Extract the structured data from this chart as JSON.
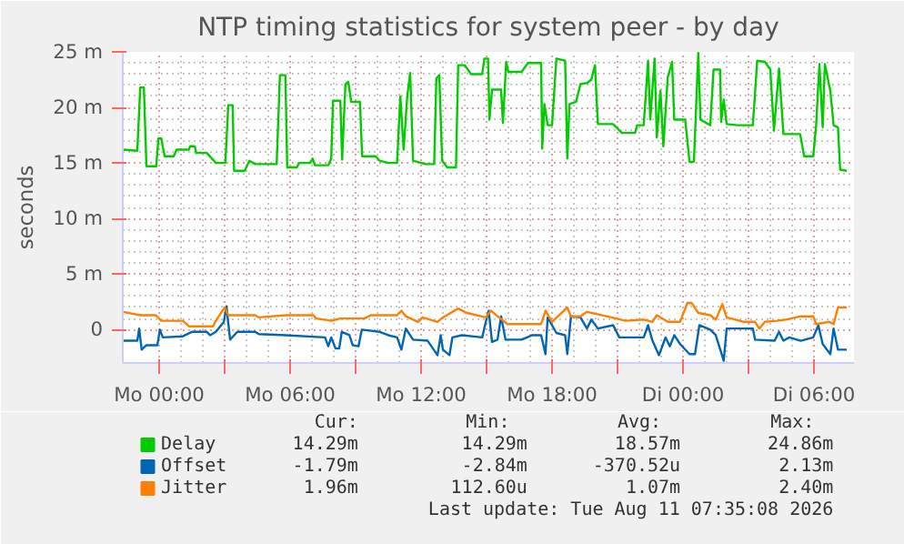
{
  "chart_data": {
    "type": "line",
    "title": "NTP timing statistics for system peer - by day",
    "ylabel": "seconds",
    "xlim": [
      "2026-08-09T22:20",
      "2026-08-11T07:50"
    ],
    "ylim": [
      -3,
      25
    ],
    "xticks": [
      {
        "value": "2026-08-10T00:00",
        "label": "Mo 00:00"
      },
      {
        "value": "2026-08-10T03:00",
        "label": null
      },
      {
        "value": "2026-08-10T06:00",
        "label": "Mo 06:00"
      },
      {
        "value": "2026-08-10T09:00",
        "label": null
      },
      {
        "value": "2026-08-10T12:00",
        "label": "Mo 12:00"
      },
      {
        "value": "2026-08-10T15:00",
        "label": null
      },
      {
        "value": "2026-08-10T18:00",
        "label": "Mo 18:00"
      },
      {
        "value": "2026-08-10T21:00",
        "label": null
      },
      {
        "value": "2026-08-11T00:00",
        "label": "Di 00:00"
      },
      {
        "value": "2026-08-11T03:00",
        "label": null
      },
      {
        "value": "2026-08-11T06:00",
        "label": "Di 06:00"
      }
    ],
    "yticks": [
      0,
      {
        "value": 5,
        "label": "5 m"
      },
      {
        "value": 10,
        "label": "10 m"
      },
      {
        "value": 15,
        "label": "15 m"
      },
      {
        "value": 20,
        "label": "20 m"
      },
      {
        "value": 25,
        "label": "25 m"
      }
    ],
    "grid": true,
    "legend": "bottom",
    "marker": "none",
    "line_style": "solid",
    "series": [
      {
        "name": "Delay",
        "color": "#00cc00",
        "x": [
          "2026-08-09T22:21",
          "2026-08-09T23:00",
          "2026-08-09T23:08",
          "2026-08-09T23:18",
          "2026-08-09T23:25",
          "2026-08-09T23:52",
          "2026-08-09T23:58",
          "2026-08-10T00:06",
          "2026-08-10T00:15",
          "2026-08-10T00:40",
          "2026-08-10T00:48",
          "2026-08-10T01:22",
          "2026-08-10T01:25",
          "2026-08-10T01:38",
          "2026-08-10T01:42",
          "2026-08-10T02:11",
          "2026-08-10T02:36",
          "2026-08-10T03:02",
          "2026-08-10T03:10",
          "2026-08-10T03:22",
          "2026-08-10T03:26",
          "2026-08-10T03:55",
          "2026-08-10T04:08",
          "2026-08-10T04:24",
          "2026-08-10T05:23",
          "2026-08-10T05:32",
          "2026-08-10T05:47",
          "2026-08-10T05:52",
          "2026-08-10T06:18",
          "2026-08-10T06:25",
          "2026-08-10T06:55",
          "2026-08-10T07:02",
          "2026-08-10T07:08",
          "2026-08-10T07:45",
          "2026-08-10T07:53",
          "2026-08-10T07:58",
          "2026-08-10T08:18",
          "2026-08-10T08:23",
          "2026-08-10T08:32",
          "2026-08-10T08:40",
          "2026-08-10T08:48",
          "2026-08-10T09:12",
          "2026-08-10T09:18",
          "2026-08-10T09:55",
          "2026-08-10T10:06",
          "2026-08-10T10:30",
          "2026-08-10T10:54",
          "2026-08-10T11:03",
          "2026-08-10T11:12",
          "2026-08-10T11:22",
          "2026-08-10T11:30",
          "2026-08-10T11:38",
          "2026-08-10T12:12",
          "2026-08-10T12:36",
          "2026-08-10T12:42",
          "2026-08-10T12:50",
          "2026-08-10T12:58",
          "2026-08-10T13:12",
          "2026-08-10T13:36",
          "2026-08-10T13:42",
          "2026-08-10T14:00",
          "2026-08-10T14:17",
          "2026-08-10T14:48",
          "2026-08-10T14:54",
          "2026-08-10T15:04",
          "2026-08-10T15:08",
          "2026-08-10T15:15",
          "2026-08-10T15:40",
          "2026-08-10T15:45",
          "2026-08-10T15:54",
          "2026-08-10T16:00",
          "2026-08-10T16:36",
          "2026-08-10T16:54",
          "2026-08-10T17:30",
          "2026-08-10T17:33",
          "2026-08-10T17:39",
          "2026-08-10T17:48",
          "2026-08-10T18:00",
          "2026-08-10T18:12",
          "2026-08-10T18:36",
          "2026-08-10T18:42",
          "2026-08-10T18:48",
          "2026-08-10T19:06",
          "2026-08-10T19:18",
          "2026-08-10T19:36",
          "2026-08-10T19:48",
          "2026-08-10T19:58",
          "2026-08-10T20:06",
          "2026-08-10T20:48",
          "2026-08-10T21:12",
          "2026-08-10T21:48",
          "2026-08-10T21:54",
          "2026-08-10T22:12",
          "2026-08-10T22:24",
          "2026-08-10T22:30",
          "2026-08-10T22:42",
          "2026-08-10T22:48",
          "2026-08-10T22:58",
          "2026-08-10T23:06",
          "2026-08-10T23:18",
          "2026-08-10T23:30",
          "2026-08-10T23:36",
          "2026-08-11T00:06",
          "2026-08-11T00:18",
          "2026-08-11T00:30",
          "2026-08-11T00:42",
          "2026-08-11T00:48",
          "2026-08-11T01:15",
          "2026-08-11T01:24",
          "2026-08-11T01:42",
          "2026-08-11T01:45",
          "2026-08-11T01:52",
          "2026-08-11T02:00",
          "2026-08-11T02:30",
          "2026-08-11T03:12",
          "2026-08-11T03:24",
          "2026-08-11T03:45",
          "2026-08-11T04:00",
          "2026-08-11T04:10",
          "2026-08-11T04:24",
          "2026-08-11T04:36",
          "2026-08-11T05:22",
          "2026-08-11T05:33",
          "2026-08-11T05:58",
          "2026-08-11T06:06",
          "2026-08-11T06:15",
          "2026-08-11T06:24",
          "2026-08-11T06:30",
          "2026-08-11T06:45",
          "2026-08-11T06:54",
          "2026-08-11T07:06",
          "2026-08-11T07:12",
          "2026-08-11T07:30"
        ],
        "values": [
          16.2,
          16.1,
          21.8,
          21.8,
          14.7,
          14.7,
          17.2,
          17.2,
          15.6,
          15.6,
          16.2,
          16.2,
          16.5,
          16.5,
          15.9,
          15.9,
          15.0,
          15.0,
          20.2,
          20.2,
          14.3,
          14.3,
          15.2,
          14.9,
          14.9,
          22.9,
          22.9,
          14.6,
          14.6,
          15.0,
          15.0,
          15.4,
          14.8,
          14.8,
          15.4,
          20.6,
          20.6,
          15.3,
          22.1,
          22.3,
          20.5,
          20.5,
          15.6,
          15.6,
          15.2,
          15.0,
          15.0,
          21.0,
          16.2,
          21.0,
          23.1,
          15.2,
          14.9,
          14.9,
          22.6,
          22.9,
          15.2,
          14.6,
          14.6,
          23.8,
          23.8,
          23.0,
          23.0,
          24.4,
          24.4,
          18.9,
          21.6,
          21.6,
          18.6,
          24.1,
          23.2,
          23.2,
          24.0,
          24.0,
          16.3,
          20.3,
          18.4,
          18.4,
          24.4,
          24.2,
          15.4,
          20.3,
          20.5,
          22.1,
          22.2,
          22.5,
          23.8,
          18.5,
          18.5,
          17.7,
          17.7,
          18.4,
          18.4,
          24.2,
          18.9,
          24.4,
          17.3,
          21.5,
          16.5,
          22.7,
          24.1,
          18.9,
          18.9,
          15.1,
          15.1,
          24.9,
          18.9,
          18.4,
          23.4,
          23.4,
          18.7,
          20.7,
          18.5,
          18.4,
          18.4,
          24.2,
          24.1,
          23.4,
          17.9,
          23.5,
          17.6,
          17.6,
          15.6,
          15.6,
          18.4,
          23.9,
          18.2,
          23.9,
          21.5,
          18.4,
          18.2,
          14.4,
          14.3
        ]
      },
      {
        "name": "Offset",
        "color": "#0066b3",
        "x": [
          "2026-08-09T22:21",
          "2026-08-09T23:00",
          "2026-08-09T23:05",
          "2026-08-09T23:12",
          "2026-08-09T23:25",
          "2026-08-09T23:55",
          "2026-08-10T00:02",
          "2026-08-10T00:10",
          "2026-08-10T01:05",
          "2026-08-10T01:30",
          "2026-08-10T02:11",
          "2026-08-10T02:20",
          "2026-08-10T02:36",
          "2026-08-10T02:58",
          "2026-08-10T03:05",
          "2026-08-10T03:15",
          "2026-08-10T03:35",
          "2026-08-10T04:24",
          "2026-08-10T04:34",
          "2026-08-10T05:48",
          "2026-08-10T07:36",
          "2026-08-10T07:45",
          "2026-08-10T07:53",
          "2026-08-10T08:05",
          "2026-08-10T08:15",
          "2026-08-10T08:22",
          "2026-08-10T08:43",
          "2026-08-10T08:52",
          "2026-08-10T09:08",
          "2026-08-10T09:17",
          "2026-08-10T10:06",
          "2026-08-10T10:30",
          "2026-08-10T10:54",
          "2026-08-10T11:06",
          "2026-08-10T11:18",
          "2026-08-10T11:38",
          "2026-08-10T12:18",
          "2026-08-10T12:45",
          "2026-08-10T12:54",
          "2026-08-10T13:00",
          "2026-08-10T13:18",
          "2026-08-10T13:26",
          "2026-08-10T13:52",
          "2026-08-10T14:48",
          "2026-08-10T14:58",
          "2026-08-10T15:06",
          "2026-08-10T15:15",
          "2026-08-10T15:30",
          "2026-08-10T15:40",
          "2026-08-10T15:52",
          "2026-08-10T16:36",
          "2026-08-10T17:06",
          "2026-08-10T17:30",
          "2026-08-10T17:42",
          "2026-08-10T17:48",
          "2026-08-10T18:12",
          "2026-08-10T18:36",
          "2026-08-10T18:42",
          "2026-08-10T18:52",
          "2026-08-10T19:18",
          "2026-08-10T19:36",
          "2026-08-10T19:48",
          "2026-08-10T20:06",
          "2026-08-10T20:48",
          "2026-08-10T21:05",
          "2026-08-10T22:12",
          "2026-08-10T22:24",
          "2026-08-10T22:36",
          "2026-08-10T22:54",
          "2026-08-10T23:12",
          "2026-08-10T23:24",
          "2026-08-10T23:36",
          "2026-08-10T23:52",
          "2026-08-11T00:18",
          "2026-08-11T00:33",
          "2026-08-11T00:45",
          "2026-08-11T01:15",
          "2026-08-11T01:30",
          "2026-08-11T01:52",
          "2026-08-11T02:00",
          "2026-08-11T03:12",
          "2026-08-11T03:18",
          "2026-08-11T04:12",
          "2026-08-11T04:24",
          "2026-08-11T04:36",
          "2026-08-11T04:52",
          "2026-08-11T05:24",
          "2026-08-11T05:58",
          "2026-08-11T06:12",
          "2026-08-11T06:24",
          "2026-08-11T06:45",
          "2026-08-11T06:54",
          "2026-08-11T07:06",
          "2026-08-11T07:30"
        ],
        "values": [
          -1.0,
          -1.0,
          0.1,
          -1.8,
          -1.4,
          -1.4,
          0,
          -0.7,
          -0.6,
          -0.2,
          -0.2,
          -0.5,
          -0.2,
          0.7,
          2.1,
          -0.9,
          -0.2,
          -0.2,
          -0.4,
          -0.5,
          -0.7,
          -1.5,
          -0.7,
          -1.7,
          -1.7,
          -0.2,
          -0.5,
          -1.4,
          -1.5,
          0,
          -0.2,
          -0.5,
          -0.7,
          -1.8,
          0.1,
          -0.9,
          -1.0,
          -2.3,
          -0.5,
          -1.8,
          -2.3,
          -0.7,
          -0.5,
          -0.7,
          0.7,
          1.7,
          -1.1,
          -0.9,
          1.2,
          -0.9,
          -0.9,
          -0.5,
          -0.5,
          -2.2,
          1.1,
          -0.3,
          -0.5,
          -2.2,
          1.2,
          1.1,
          0.1,
          0.9,
          0.1,
          0.4,
          -0.7,
          -0.7,
          0.4,
          -1.0,
          -2.3,
          -0.7,
          -1.5,
          -0.5,
          -1.3,
          -2.2,
          -2.2,
          0.4,
          0,
          -0.5,
          -2.8,
          0.1,
          0.1,
          -0.9,
          -1.0,
          -0.2,
          -1.0,
          -0.7,
          -1.0,
          -0.7,
          0.4,
          -1.3,
          -2.2,
          0.1,
          -1.8,
          -1.8
        ]
      },
      {
        "name": "Jitter",
        "color": "#ff8000",
        "x": [
          "2026-08-09T22:21",
          "2026-08-09T23:08",
          "2026-08-09T23:50",
          "2026-08-10T00:06",
          "2026-08-10T01:05",
          "2026-08-10T01:22",
          "2026-08-10T02:28",
          "2026-08-10T02:36",
          "2026-08-10T03:00",
          "2026-08-10T03:10",
          "2026-08-10T04:24",
          "2026-08-10T04:34",
          "2026-08-10T05:48",
          "2026-08-10T07:04",
          "2026-08-10T07:12",
          "2026-08-10T07:54",
          "2026-08-10T08:18",
          "2026-08-10T09:24",
          "2026-08-10T09:42",
          "2026-08-10T10:54",
          "2026-08-10T11:06",
          "2026-08-10T11:18",
          "2026-08-10T11:52",
          "2026-08-10T12:04",
          "2026-08-10T12:45",
          "2026-08-10T13:00",
          "2026-08-10T13:42",
          "2026-08-10T14:06",
          "2026-08-10T14:58",
          "2026-08-10T15:12",
          "2026-08-10T15:57",
          "2026-08-10T17:30",
          "2026-08-10T17:42",
          "2026-08-10T18:00",
          "2026-08-10T18:42",
          "2026-08-10T18:52",
          "2026-08-10T19:18",
          "2026-08-10T19:36",
          "2026-08-10T20:30",
          "2026-08-10T21:22",
          "2026-08-10T22:12",
          "2026-08-10T22:36",
          "2026-08-10T22:48",
          "2026-08-10T23:18",
          "2026-08-10T23:52",
          "2026-08-11T00:12",
          "2026-08-11T00:24",
          "2026-08-11T00:42",
          "2026-08-11T01:15",
          "2026-08-11T01:30",
          "2026-08-11T01:48",
          "2026-08-11T02:00",
          "2026-08-11T02:48",
          "2026-08-11T03:18",
          "2026-08-11T03:30",
          "2026-08-11T03:45",
          "2026-08-11T04:18",
          "2026-08-11T04:42",
          "2026-08-11T05:24",
          "2026-08-11T05:58",
          "2026-08-11T06:06",
          "2026-08-11T06:42",
          "2026-08-11T06:54",
          "2026-08-11T07:06",
          "2026-08-11T07:30"
        ],
        "values": [
          1.6,
          1.3,
          1.3,
          0.8,
          0.8,
          0.3,
          0.3,
          0.8,
          2.0,
          1.3,
          1.3,
          1.1,
          1.3,
          1.3,
          1.0,
          0.8,
          1.0,
          1.0,
          1.3,
          1.3,
          1.7,
          1.2,
          0.7,
          1.1,
          0.7,
          1.1,
          1.9,
          1.5,
          1.1,
          1.7,
          0.5,
          0.5,
          1.7,
          0.7,
          2.0,
          1.2,
          1.2,
          1.6,
          1.2,
          0.8,
          0.9,
          0.7,
          1.3,
          0.7,
          0.7,
          2.4,
          2.4,
          1.5,
          1.3,
          0.9,
          2.3,
          1.1,
          0.7,
          0.7,
          0.1,
          0.7,
          0.8,
          0.9,
          1.2,
          1.2,
          0.5,
          0.7,
          0.5,
          2.0,
          2.0
        ]
      }
    ],
    "annotations": [
      "Cur:",
      "Min:",
      "Avg:",
      "Max:",
      "14.29m",
      "14.29m",
      "18.57m",
      "24.86m",
      "-1.79m",
      "-2.84m",
      "-370.52u",
      "2.13m",
      "1.96m",
      "112.60u",
      "1.07m",
      "2.40m",
      "Last update: Tue Aug 11 07:35:08 2026"
    ]
  }
}
